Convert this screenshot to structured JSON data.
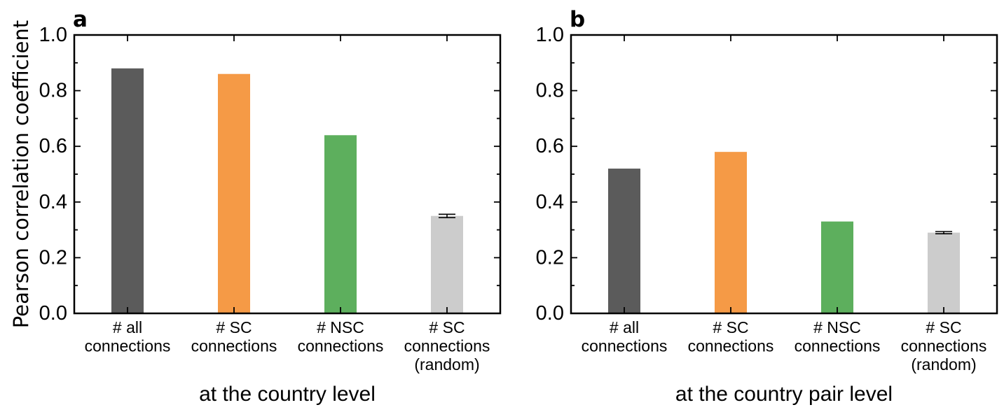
{
  "figure": {
    "ylabel": "Pearson correlation coefficient"
  },
  "chart_data": [
    {
      "type": "bar",
      "panel_label": "a",
      "xlabel": "at the country level",
      "ylabel": "Pearson correlation coefficient",
      "ylim": [
        0,
        1
      ],
      "yticks": [
        "0.0",
        "0.2",
        "0.4",
        "0.6",
        "0.8",
        "1.0"
      ],
      "grid": false,
      "categories": [
        [
          "# all",
          "connections"
        ],
        [
          "# SC",
          "connections"
        ],
        [
          "# NSC",
          "connections"
        ],
        [
          "# SC",
          "connections",
          "(random)"
        ]
      ],
      "values": [
        0.88,
        0.86,
        0.64,
        0.35
      ],
      "errors": [
        null,
        null,
        null,
        0.006
      ],
      "colors": [
        "#5b5b5b",
        "#f59a46",
        "#5daf5d",
        "#cccccc"
      ]
    },
    {
      "type": "bar",
      "panel_label": "b",
      "xlabel": "at the country pair level",
      "ylabel": "",
      "ylim": [
        0,
        1
      ],
      "yticks": [
        "0.0",
        "0.2",
        "0.4",
        "0.6",
        "0.8",
        "1.0"
      ],
      "grid": false,
      "categories": [
        [
          "# all",
          "connections"
        ],
        [
          "# SC",
          "connections"
        ],
        [
          "# NSC",
          "connections"
        ],
        [
          "# SC",
          "connections",
          "(random)"
        ]
      ],
      "values": [
        0.52,
        0.58,
        0.33,
        0.29
      ],
      "errors": [
        null,
        null,
        null,
        0.004
      ],
      "colors": [
        "#5b5b5b",
        "#f59a46",
        "#5daf5d",
        "#cccccc"
      ]
    }
  ]
}
